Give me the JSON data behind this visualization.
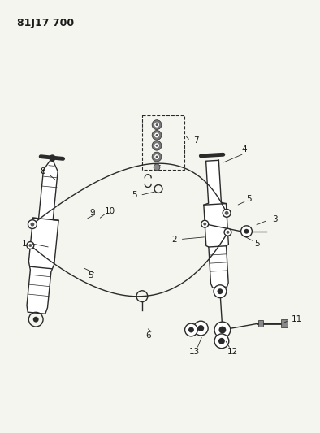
{
  "title": "81J17 700",
  "bg_color": "#f5f5f0",
  "line_color": "#2a2a2a",
  "label_color": "#1a1a1a",
  "fig_width": 3.94,
  "fig_height": 5.33,
  "dpi": 100
}
